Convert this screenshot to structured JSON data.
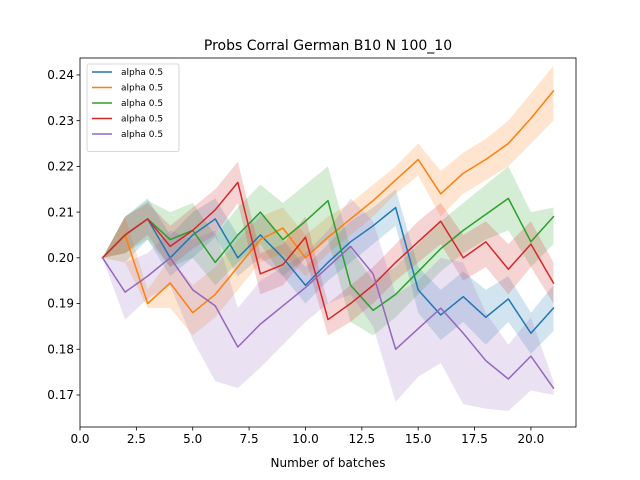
{
  "chart_data": {
    "type": "line",
    "title": "Probs Corral German B10 N 100_10",
    "xlabel": "Number of batches",
    "ylabel": "",
    "xlim": [
      0.0,
      22.0
    ],
    "ylim": [
      0.163,
      0.2437
    ],
    "xticks": [
      0.0,
      2.5,
      5.0,
      7.5,
      10.0,
      12.5,
      15.0,
      17.5,
      20.0
    ],
    "xtick_labels": [
      "0.0",
      "2.5",
      "5.0",
      "7.5",
      "10.0",
      "12.5",
      "15.0",
      "17.5",
      "20.0"
    ],
    "yticks": [
      0.17,
      0.18,
      0.19,
      0.2,
      0.21,
      0.22,
      0.23,
      0.24
    ],
    "ytick_labels": [
      "0.17",
      "0.18",
      "0.19",
      "0.20",
      "0.21",
      "0.22",
      "0.23",
      "0.24"
    ],
    "grid": false,
    "legend_position": "top-left",
    "x": [
      1,
      2,
      3,
      4,
      5,
      6,
      7,
      8,
      9,
      10,
      11,
      12,
      13,
      14,
      15,
      16,
      17,
      18,
      19,
      20,
      21
    ],
    "series": [
      {
        "name": "alpha 0.5",
        "color": "#1f77b4",
        "values": [
          0.2,
          0.205,
          0.2085,
          0.2,
          0.205,
          0.2085,
          0.2,
          0.205,
          0.2,
          0.194,
          0.199,
          0.2035,
          0.207,
          0.211,
          0.193,
          0.1875,
          0.1915,
          0.187,
          0.191,
          0.1835,
          0.189
        ],
        "lower": [
          0.2,
          0.199,
          0.204,
          0.196,
          0.2,
          0.2045,
          0.196,
          0.2,
          0.196,
          0.19,
          0.195,
          0.199,
          0.203,
          0.207,
          0.188,
          0.182,
          0.186,
          0.181,
          0.186,
          0.179,
          0.184
        ],
        "upper": [
          0.2,
          0.209,
          0.213,
          0.205,
          0.21,
          0.213,
          0.205,
          0.21,
          0.204,
          0.198,
          0.203,
          0.208,
          0.211,
          0.215,
          0.198,
          0.193,
          0.197,
          0.193,
          0.196,
          0.188,
          0.194
        ]
      },
      {
        "name": "alpha 0.5",
        "color": "#ff7f0e",
        "values": [
          0.2,
          0.205,
          0.19,
          0.1945,
          0.188,
          0.192,
          0.198,
          0.204,
          0.2065,
          0.2,
          0.2045,
          0.2085,
          0.2125,
          0.217,
          0.2215,
          0.214,
          0.2185,
          0.2215,
          0.225,
          0.2305,
          0.2365
        ],
        "lower": [
          0.2,
          0.199,
          0.189,
          0.189,
          0.183,
          0.187,
          0.193,
          0.199,
          0.201,
          0.196,
          0.201,
          0.205,
          0.209,
          0.214,
          0.218,
          0.209,
          0.214,
          0.217,
          0.22,
          0.225,
          0.23
        ],
        "upper": [
          0.2,
          0.209,
          0.193,
          0.2,
          0.194,
          0.198,
          0.204,
          0.209,
          0.211,
          0.205,
          0.209,
          0.212,
          0.216,
          0.22,
          0.225,
          0.219,
          0.223,
          0.226,
          0.23,
          0.236,
          0.242
        ]
      },
      {
        "name": "alpha 0.5",
        "color": "#2ca02c",
        "values": [
          0.2,
          0.205,
          0.2085,
          0.204,
          0.206,
          0.199,
          0.205,
          0.21,
          0.204,
          0.208,
          0.2125,
          0.194,
          0.1885,
          0.192,
          0.197,
          0.202,
          0.206,
          0.2095,
          0.213,
          0.2035,
          0.209
        ],
        "lower": [
          0.2,
          0.201,
          0.204,
          0.198,
          0.2,
          0.194,
          0.199,
          0.203,
          0.196,
          0.2,
          0.204,
          0.186,
          0.183,
          0.187,
          0.192,
          0.197,
          0.201,
          0.204,
          0.206,
          0.198,
          0.203
        ],
        "upper": [
          0.2,
          0.209,
          0.2125,
          0.21,
          0.212,
          0.205,
          0.211,
          0.216,
          0.212,
          0.216,
          0.22,
          0.202,
          0.195,
          0.198,
          0.203,
          0.208,
          0.212,
          0.216,
          0.22,
          0.21,
          0.211
        ]
      },
      {
        "name": "alpha 0.5",
        "color": "#d62728",
        "values": [
          0.2,
          0.205,
          0.2085,
          0.2025,
          0.206,
          0.2105,
          0.2165,
          0.1965,
          0.1985,
          0.2045,
          0.1865,
          0.19,
          0.194,
          0.199,
          0.2035,
          0.208,
          0.2,
          0.2035,
          0.1975,
          0.203,
          0.1945
        ],
        "lower": [
          0.2,
          0.201,
          0.205,
          0.198,
          0.202,
          0.205,
          0.212,
          0.192,
          0.194,
          0.2,
          0.183,
          0.186,
          0.19,
          0.195,
          0.199,
          0.203,
          0.195,
          0.198,
          0.192,
          0.198,
          0.19
        ],
        "upper": [
          0.2,
          0.209,
          0.212,
          0.207,
          0.211,
          0.215,
          0.221,
          0.201,
          0.203,
          0.209,
          0.19,
          0.194,
          0.198,
          0.203,
          0.208,
          0.212,
          0.205,
          0.208,
          0.203,
          0.208,
          0.199
        ]
      },
      {
        "name": "alpha 0.5",
        "color": "#9467bd",
        "values": [
          0.2,
          0.1925,
          0.196,
          0.2,
          0.193,
          0.1895,
          0.1805,
          0.1855,
          0.1895,
          0.1935,
          0.198,
          0.2025,
          0.1965,
          0.18,
          0.1845,
          0.189,
          0.1835,
          0.1775,
          0.1735,
          0.1785,
          0.1715
        ],
        "lower": [
          0.2,
          0.1865,
          0.191,
          0.194,
          0.182,
          0.173,
          0.1715,
          0.176,
          0.181,
          0.186,
          0.19,
          0.192,
          0.185,
          0.1685,
          0.174,
          0.177,
          0.168,
          0.167,
          0.1665,
          0.171,
          0.17
        ],
        "upper": [
          0.2,
          0.199,
          0.201,
          0.206,
          0.204,
          0.206,
          0.189,
          0.195,
          0.198,
          0.201,
          0.206,
          0.213,
          0.208,
          0.192,
          0.195,
          0.2,
          0.199,
          0.188,
          0.181,
          0.187,
          0.173
        ]
      }
    ]
  }
}
